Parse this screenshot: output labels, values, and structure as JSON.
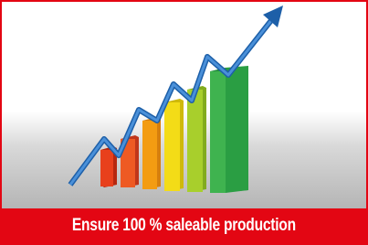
{
  "caption": "Ensure 100 % saleable production"
}
